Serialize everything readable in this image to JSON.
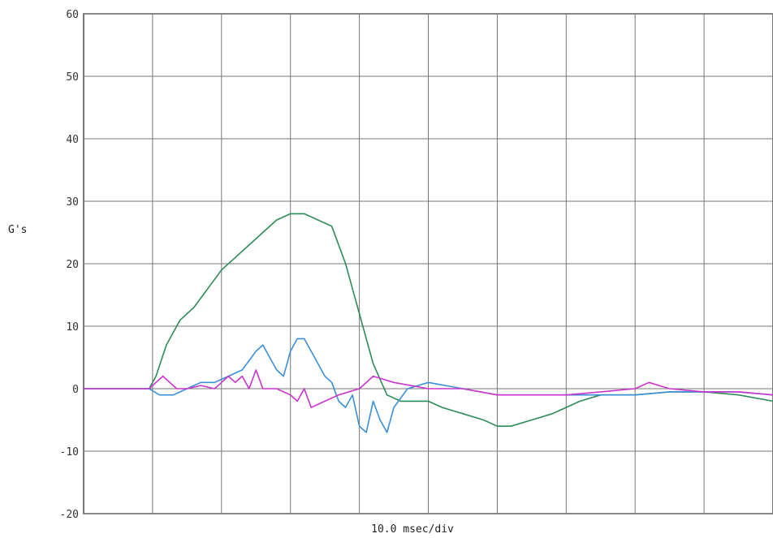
{
  "chart_data": {
    "type": "line",
    "title": "",
    "ylabel": "G's",
    "xlabel": "10.0 msec/div",
    "ylim": [
      -20,
      60
    ],
    "yticks": [
      60,
      50,
      40,
      30,
      20,
      10,
      0,
      -10,
      -20
    ],
    "ytick_labels": [
      "60",
      "50",
      "40",
      "30",
      "20",
      "10",
      "0",
      "-10",
      "-20"
    ],
    "x_divisions": 10,
    "xlim": [
      0,
      100
    ],
    "x_unit": "msec",
    "grid": true,
    "series": [
      {
        "color": "#2e8b57",
        "x": [
          0,
          5,
          9.5,
          10.5,
          12,
          14,
          16,
          18,
          20,
          22,
          24,
          26,
          28,
          30,
          32,
          34,
          36,
          38,
          40,
          42,
          44,
          46,
          48,
          50,
          52,
          55,
          58,
          60,
          62,
          65,
          68,
          70,
          72,
          75,
          78,
          80,
          85,
          90,
          95,
          100
        ],
        "values": [
          0,
          0,
          0,
          2,
          7,
          11,
          13,
          16,
          19,
          21,
          23,
          25,
          27,
          28,
          28,
          27,
          26,
          20,
          12,
          4,
          -1,
          -2,
          -2,
          -2,
          -3,
          -4,
          -5,
          -6,
          -6,
          -5,
          -4,
          -3,
          -2,
          -1,
          -1,
          -1,
          -0.5,
          -0.5,
          -1,
          -2
        ]
      },
      {
        "color": "#3a8fd8",
        "x": [
          0,
          5,
          9.5,
          11,
          13,
          15,
          17,
          19,
          21,
          23,
          25,
          26,
          27,
          28,
          29,
          30,
          31,
          32,
          33,
          35,
          36,
          37,
          38,
          39,
          40,
          41,
          42,
          43,
          44,
          45,
          47,
          50,
          55,
          60,
          65,
          70,
          75,
          80,
          85,
          90,
          95,
          100
        ],
        "values": [
          0,
          0,
          0,
          -1,
          -1,
          0,
          1,
          1,
          2,
          3,
          6,
          7,
          5,
          3,
          2,
          6,
          8,
          8,
          6,
          2,
          1,
          -2,
          -3,
          -1,
          -6,
          -7,
          -2,
          -5,
          -7,
          -3,
          0,
          1,
          0,
          -1,
          -1,
          -1,
          -1,
          -1,
          -0.5,
          -0.5,
          -0.5,
          -1
        ]
      },
      {
        "color": "#cc33cc",
        "x": [
          0,
          5,
          9.5,
          10.5,
          11.5,
          12.5,
          13.5,
          15,
          17,
          19,
          20,
          21,
          22,
          23,
          24,
          25,
          26,
          28,
          30,
          31,
          32,
          33,
          35,
          37,
          40,
          42,
          45,
          50,
          55,
          60,
          65,
          70,
          75,
          80,
          82,
          85,
          90,
          95,
          100
        ],
        "values": [
          0,
          0,
          0,
          1,
          2,
          1,
          0,
          0,
          0.5,
          0,
          1,
          2,
          1,
          2,
          0,
          3,
          0,
          0,
          -1,
          -2,
          0,
          -3,
          -2,
          -1,
          0,
          2,
          1,
          0,
          0,
          -1,
          -1,
          -1,
          -0.5,
          0,
          1,
          0,
          -0.5,
          -0.5,
          -1
        ]
      }
    ]
  }
}
